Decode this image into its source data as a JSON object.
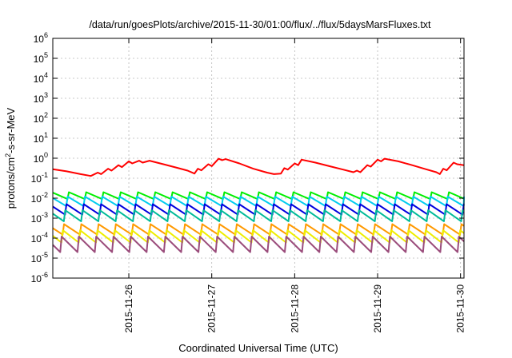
{
  "chart_data": {
    "type": "line",
    "title": "/data/run/goesPlots/archive/2015-11-30/01:00/flux/../flux/5daysMarsFluxes.txt",
    "xlabel": "Coordinated Universal Time (UTC)",
    "ylabel_base": "protons/cm",
    "ylabel_sup": "2",
    "ylabel_rest": "-s-sr-MeV",
    "yscale": "log",
    "ylim": [
      1e-06,
      1000000.0
    ],
    "y_ticks": [
      {
        "base": "10",
        "exp": "-6",
        "value": 1e-06
      },
      {
        "base": "10",
        "exp": "-5",
        "value": 1e-05
      },
      {
        "base": "10",
        "exp": "-4",
        "value": 0.0001
      },
      {
        "base": "10",
        "exp": "-3",
        "value": 0.001
      },
      {
        "base": "10",
        "exp": "-2",
        "value": 0.01
      },
      {
        "base": "10",
        "exp": "-1",
        "value": 0.1
      },
      {
        "base": "10",
        "exp": "0",
        "value": 1
      },
      {
        "base": "10",
        "exp": "1",
        "value": 10
      },
      {
        "base": "10",
        "exp": "2",
        "value": 100
      },
      {
        "base": "10",
        "exp": "3",
        "value": 1000
      },
      {
        "base": "10",
        "exp": "4",
        "value": 10000
      },
      {
        "base": "10",
        "exp": "5",
        "value": 100000
      },
      {
        "base": "10",
        "exp": "6",
        "value": 1000000
      }
    ],
    "xlim": [
      "2015-11-25 02:00",
      "2015-11-30 01:00"
    ],
    "x_ticks": [
      {
        "label": "2015-11-26",
        "date": "2015-11-26 00:00"
      },
      {
        "label": "2015-11-27",
        "date": "2015-11-27 00:00"
      },
      {
        "label": "2015-11-28",
        "date": "2015-11-28 00:00"
      },
      {
        "label": "2015-11-29",
        "date": "2015-11-29 00:00"
      },
      {
        "label": "2015-11-30",
        "date": "2015-11-30 00:00"
      }
    ],
    "grid": true,
    "series": [
      {
        "color": "#ff0000",
        "style": "smooth",
        "points": [
          [
            "2015-11-25 02:00",
            0.28
          ],
          [
            "2015-11-25 06:00",
            0.22
          ],
          [
            "2015-11-25 10:00",
            0.16
          ],
          [
            "2015-11-25 13:00",
            0.13
          ],
          [
            "2015-11-25 15:00",
            0.19
          ],
          [
            "2015-11-25 16:00",
            0.16
          ],
          [
            "2015-11-25 18:00",
            0.3
          ],
          [
            "2015-11-25 19:00",
            0.24
          ],
          [
            "2015-11-25 21:00",
            0.45
          ],
          [
            "2015-11-25 22:00",
            0.36
          ],
          [
            "2015-11-26 00:00",
            0.7
          ],
          [
            "2015-11-26 01:00",
            0.55
          ],
          [
            "2015-11-26 03:00",
            0.75
          ],
          [
            "2015-11-26 04:00",
            0.6
          ],
          [
            "2015-11-26 06:00",
            0.75
          ],
          [
            "2015-11-26 10:00",
            0.5
          ],
          [
            "2015-11-26 14:00",
            0.33
          ],
          [
            "2015-11-26 17:00",
            0.24
          ],
          [
            "2015-11-26 19:00",
            0.17
          ],
          [
            "2015-11-26 20:00",
            0.3
          ],
          [
            "2015-11-26 21:00",
            0.25
          ],
          [
            "2015-11-26 23:00",
            0.5
          ],
          [
            "2015-11-27 00:00",
            0.4
          ],
          [
            "2015-11-27 02:00",
            0.95
          ],
          [
            "2015-11-27 03:00",
            0.8
          ],
          [
            "2015-11-27 04:00",
            0.9
          ],
          [
            "2015-11-27 08:00",
            0.55
          ],
          [
            "2015-11-27 12:00",
            0.3
          ],
          [
            "2015-11-27 16:00",
            0.19
          ],
          [
            "2015-11-27 18:00",
            0.16
          ],
          [
            "2015-11-27 20:00",
            0.17
          ],
          [
            "2015-11-27 21:00",
            0.32
          ],
          [
            "2015-11-27 22:00",
            0.27
          ],
          [
            "2015-11-28 00:00",
            0.55
          ],
          [
            "2015-11-28 01:00",
            0.45
          ],
          [
            "2015-11-28 02:00",
            0.85
          ],
          [
            "2015-11-28 06:00",
            0.6
          ],
          [
            "2015-11-28 10:00",
            0.4
          ],
          [
            "2015-11-28 14:00",
            0.27
          ],
          [
            "2015-11-28 17:00",
            0.2
          ],
          [
            "2015-11-28 18:00",
            0.24
          ],
          [
            "2015-11-28 19:00",
            0.2
          ],
          [
            "2015-11-28 21:00",
            0.45
          ],
          [
            "2015-11-28 22:00",
            0.38
          ],
          [
            "2015-11-29 00:00",
            0.85
          ],
          [
            "2015-11-29 01:00",
            0.7
          ],
          [
            "2015-11-29 02:00",
            0.95
          ],
          [
            "2015-11-29 06:00",
            0.7
          ],
          [
            "2015-11-29 10:00",
            0.45
          ],
          [
            "2015-11-29 14:00",
            0.28
          ],
          [
            "2015-11-29 17:00",
            0.2
          ],
          [
            "2015-11-29 18:00",
            0.16
          ],
          [
            "2015-11-29 19:00",
            0.3
          ],
          [
            "2015-11-29 20:00",
            0.25
          ],
          [
            "2015-11-29 22:00",
            0.6
          ],
          [
            "2015-11-29 23:00",
            0.5
          ],
          [
            "2015-11-30 01:00",
            0.45
          ]
        ]
      },
      {
        "color": "#00ee00",
        "style": "sawtooth",
        "peak": 0.02,
        "trough": 0.009
      },
      {
        "color": "#00ccee",
        "style": "sawtooth",
        "peak": 0.012,
        "trough": 0.004
      },
      {
        "color": "#0000dd",
        "style": "sawtooth",
        "peak": 0.005,
        "trough": 0.0015
      },
      {
        "color": "#00bb99",
        "style": "sawtooth",
        "peak": 0.0025,
        "trough": 0.0007
      },
      {
        "color": "#ff9900",
        "style": "sawtooth",
        "peak": 0.0005,
        "trough": 0.00015
      },
      {
        "color": "#eeee00",
        "style": "sawtooth",
        "peak": 0.00025,
        "trough": 6e-05
      },
      {
        "color": "#9b4d7c",
        "style": "sawtooth",
        "peak": 0.00012,
        "trough": 2e-05
      }
    ]
  }
}
